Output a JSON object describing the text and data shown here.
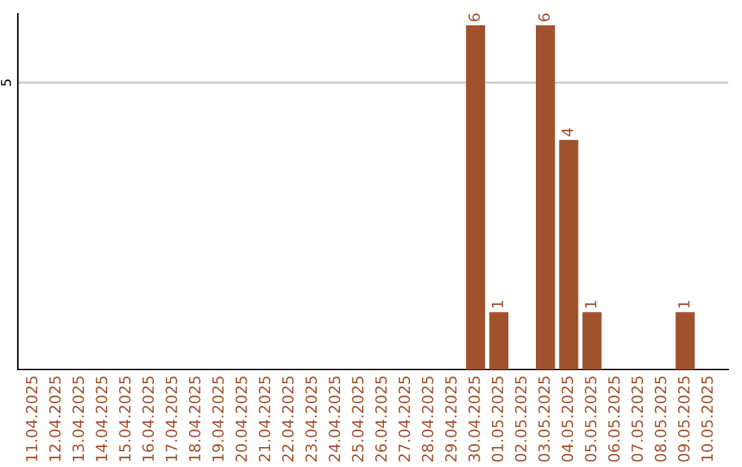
{
  "chart_data": {
    "type": "bar",
    "categories": [
      "11.04.2025",
      "12.04.2025",
      "13.04.2025",
      "14.04.2025",
      "15.04.2025",
      "16.04.2025",
      "17.04.2025",
      "18.04.2025",
      "19.04.2025",
      "20.04.2025",
      "21.04.2025",
      "22.04.2025",
      "23.04.2025",
      "24.04.2025",
      "25.04.2025",
      "26.04.2025",
      "27.04.2025",
      "28.04.2025",
      "29.04.2025",
      "30.04.2025",
      "01.05.2025",
      "02.05.2025",
      "03.05.2025",
      "04.05.2025",
      "05.05.2025",
      "06.05.2025",
      "07.05.2025",
      "08.05.2025",
      "09.05.2025",
      "10.05.2025"
    ],
    "values": [
      null,
      null,
      null,
      null,
      null,
      null,
      null,
      null,
      null,
      null,
      null,
      null,
      null,
      null,
      null,
      null,
      null,
      null,
      null,
      6,
      1,
      null,
      6,
      4,
      1,
      null,
      null,
      null,
      1,
      null
    ],
    "data_labels": true,
    "color": "#a0522d",
    "ylim": [
      0,
      6.2
    ],
    "ref_lines": [
      {
        "axis": "y",
        "value": 5,
        "label": "5",
        "color": "#c8c8c8"
      }
    ]
  }
}
